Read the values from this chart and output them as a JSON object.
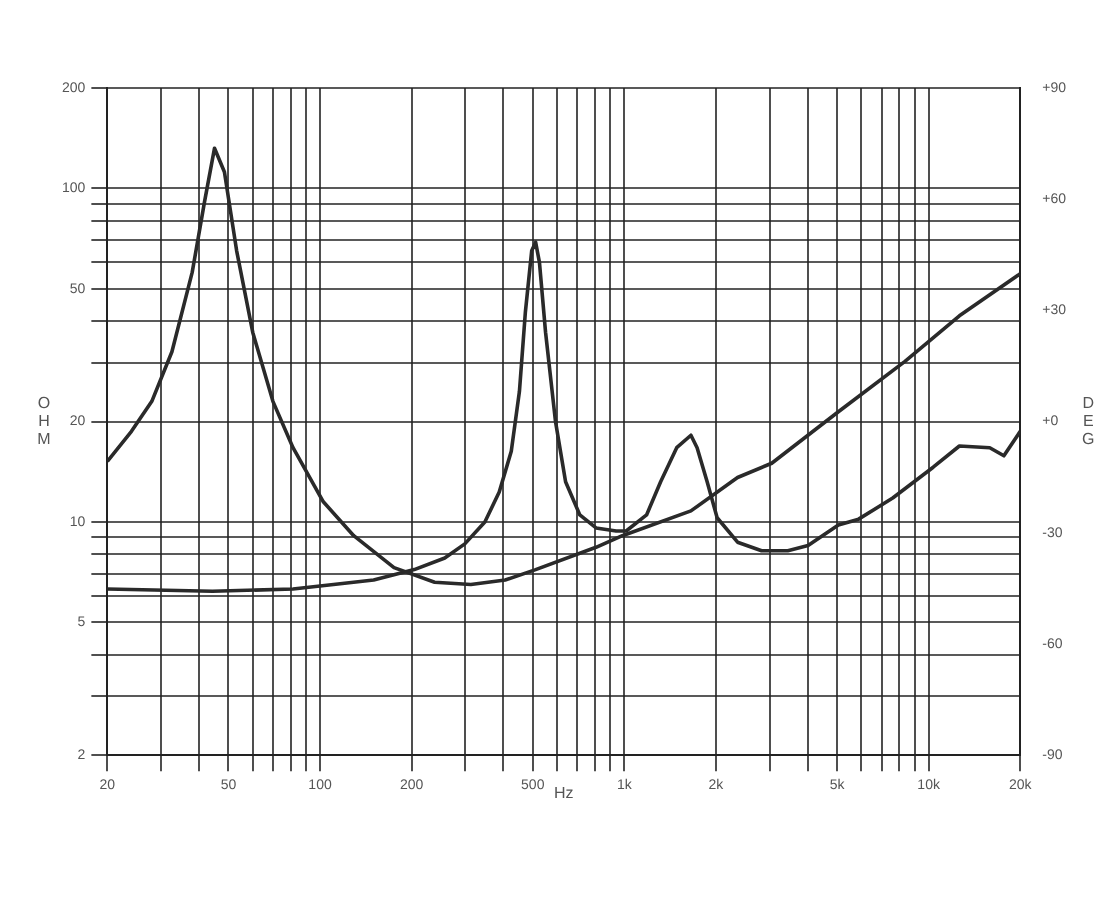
{
  "chart_data": {
    "type": "line",
    "xlabel": "Hz",
    "ylabel": "OHM",
    "y2label": "DEG",
    "log": "xy",
    "grid": true,
    "legend": false,
    "marker": "none",
    "line_style": "solid",
    "xlim": [
      20,
      20000
    ],
    "xticks": [
      20,
      {
        "value": 30,
        "label": null
      },
      {
        "value": 40,
        "label": null
      },
      50,
      {
        "value": 60,
        "label": null
      },
      {
        "value": 70,
        "label": null
      },
      {
        "value": 80,
        "label": null
      },
      {
        "value": 90,
        "label": null
      },
      100,
      200,
      {
        "value": 300,
        "label": null
      },
      {
        "value": 400,
        "label": null
      },
      500,
      {
        "value": 600,
        "label": null
      },
      {
        "value": 700,
        "label": null
      },
      {
        "value": 800,
        "label": null
      },
      {
        "value": 900,
        "label": null
      },
      {
        "value": 1000,
        "label": "1k"
      },
      {
        "value": 2000,
        "label": "2k"
      },
      {
        "value": 3000,
        "label": null
      },
      {
        "value": 4000,
        "label": null
      },
      {
        "value": 5000,
        "label": "5k"
      },
      {
        "value": 6000,
        "label": null
      },
      {
        "value": 7000,
        "label": null
      },
      {
        "value": 8000,
        "label": null
      },
      {
        "value": 9000,
        "label": null
      },
      {
        "value": 10000,
        "label": "10k"
      },
      {
        "value": 20000,
        "label": "20k"
      }
    ],
    "ylim": [
      2,
      200
    ],
    "yticks": [
      2,
      {
        "value": 3,
        "label": null
      },
      {
        "value": 4,
        "label": null
      },
      5,
      {
        "value": 6,
        "label": null
      },
      {
        "value": 7,
        "label": null
      },
      {
        "value": 8,
        "label": null
      },
      {
        "value": 9,
        "label": null
      },
      10,
      20,
      {
        "value": 30,
        "label": null
      },
      {
        "value": 40,
        "label": null
      },
      50,
      {
        "value": 60,
        "label": null
      },
      {
        "value": 70,
        "label": null
      },
      {
        "value": 80,
        "label": null
      },
      {
        "value": 90,
        "label": null
      },
      100,
      200
    ],
    "y2lim": [
      -90,
      90
    ],
    "y2ticks": [
      {
        "value": -90,
        "label": "-90"
      },
      {
        "value": -60,
        "label": "-60"
      },
      {
        "value": -30,
        "label": "-30"
      },
      {
        "value": 0,
        "label": "+0"
      },
      {
        "value": 30,
        "label": "+30"
      },
      {
        "value": 60,
        "label": "+60"
      },
      {
        "value": 90,
        "label": "+90"
      }
    ],
    "series": [
      {
        "color": "#2a2a2a",
        "x": [
          20,
          24,
          28,
          32.6,
          38,
          41.7,
          45,
          48.5,
          53.2,
          60.1,
          70,
          81.5,
          102.5,
          129,
          175,
          238,
          313,
          406,
          511,
          807,
          985,
          1655,
          2355,
          3050,
          5050,
          8360,
          12620,
          20000
        ],
        "values": [
          15.2,
          18.7,
          23,
          32.4,
          56,
          91,
          132,
          112,
          65,
          37,
          23,
          16.7,
          11.5,
          9.1,
          7.3,
          6.6,
          6.5,
          6.7,
          7.2,
          8.4,
          9.1,
          10.8,
          13.6,
          15,
          21.4,
          30.3,
          41.5,
          55.5
        ]
      },
      {
        "color": "#2a2a2a",
        "x": [
          20,
          44.3,
          81.5,
          110.7,
          150,
          204,
          257,
          299,
          348,
          388,
          425,
          452,
          473,
          496,
          511,
          526,
          551,
          594,
          641,
          714,
          807,
          940,
          1014,
          1183,
          1316,
          1486,
          1655,
          1734,
          1871,
          2018,
          2355,
          2825,
          3445,
          4015,
          5050,
          5885,
          7620,
          10350,
          12620,
          15880,
          17670,
          20000
        ],
        "values": [
          6.3,
          6.2,
          6.3,
          6.5,
          6.7,
          7.2,
          7.8,
          8.6,
          10,
          12.3,
          16.3,
          24.6,
          42.7,
          65,
          69,
          60,
          37,
          20,
          13.2,
          10.5,
          9.6,
          9.4,
          9.4,
          10.5,
          13.2,
          16.7,
          18.2,
          16.7,
          13.2,
          10.3,
          8.7,
          8.2,
          8.2,
          8.5,
          9.8,
          10.2,
          11.8,
          14.6,
          16.9,
          16.7,
          15.8,
          18.7
        ]
      }
    ]
  }
}
